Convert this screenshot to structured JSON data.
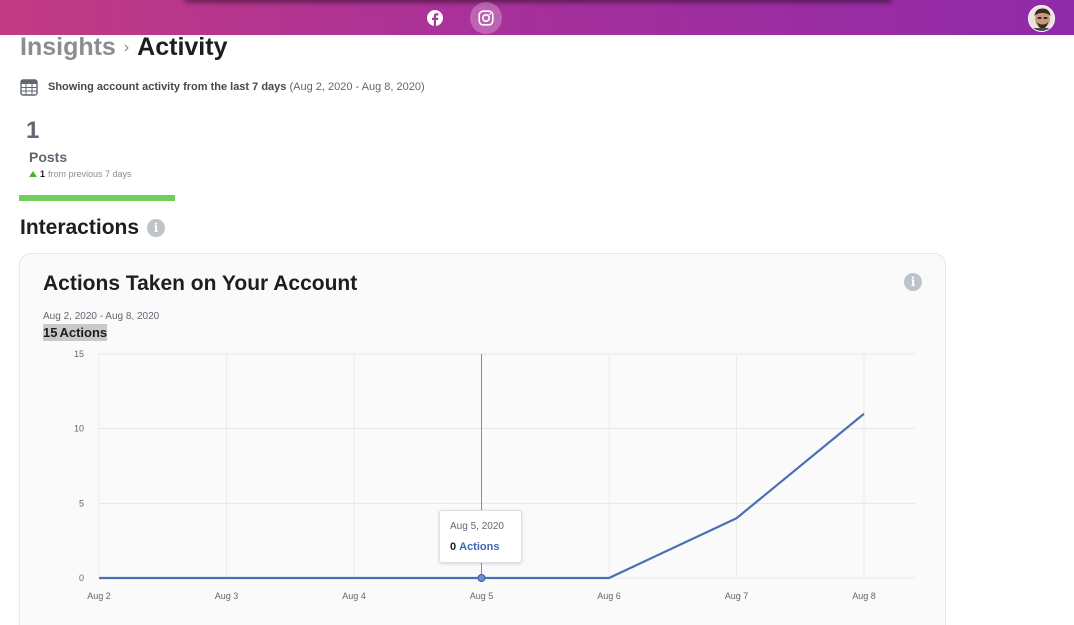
{
  "topbar": {
    "nav": [
      {
        "icon": "facebook-icon"
      },
      {
        "icon": "instagram-icon",
        "active": true
      }
    ],
    "gradient_start": "#c23a82",
    "gradient_end": "#8f2aa8"
  },
  "breadcrumb": {
    "parent": "Insights",
    "separator": "›",
    "current": "Activity"
  },
  "range": {
    "icon": "calendar-icon",
    "main": "Showing account activity from the last 7 days",
    "dates": "(Aug 2, 2020 - Aug 8, 2020)"
  },
  "metric": {
    "value": "1",
    "label": "Posts",
    "delta": "1",
    "delta_text": "from previous 7 days",
    "accent": "#6fcf5a"
  },
  "section": {
    "title": "Interactions",
    "info": "i"
  },
  "card": {
    "title": "Actions Taken on Your Account",
    "info": "i",
    "range": "Aug 2, 2020 - Aug 8, 2020",
    "total_value": "15",
    "total_label": "Actions"
  },
  "tooltip": {
    "date": "Aug 5, 2020",
    "value": "0",
    "label": "Actions"
  },
  "chart_data": {
    "type": "line",
    "categories": [
      "Aug 2",
      "Aug 3",
      "Aug 4",
      "Aug 5",
      "Aug 6",
      "Aug 7",
      "Aug 8"
    ],
    "series": [
      {
        "values": [
          0,
          0,
          0,
          0,
          0,
          4,
          11
        ],
        "color": "#4a6fb5"
      }
    ],
    "yticks": [
      "0",
      "5",
      "10",
      "15"
    ],
    "ylim": [
      0,
      15
    ],
    "grid": true,
    "hover_index": 3
  }
}
